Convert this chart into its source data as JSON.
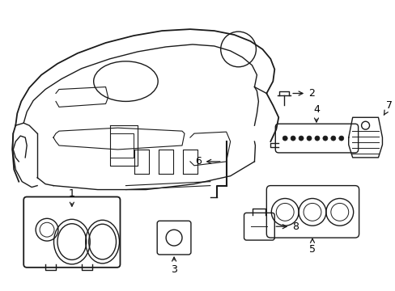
{
  "bg_color": "#ffffff",
  "line_color": "#1a1a1a",
  "text_color": "#000000",
  "lw": 1.0,
  "figsize": [
    4.89,
    3.6
  ],
  "dpi": 100,
  "xlim": [
    0,
    489
  ],
  "ylim": [
    0,
    360
  ]
}
